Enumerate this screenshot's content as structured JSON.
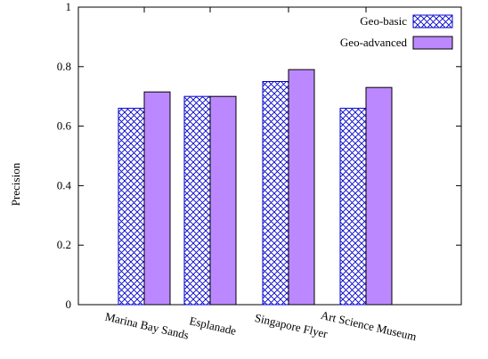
{
  "chart_data": {
    "type": "bar",
    "categories": [
      "Marina Bay Sands",
      "Esplanade",
      "Singapore Flyer",
      "Art Science Museum"
    ],
    "series": [
      {
        "name": "Geo-basic",
        "values": [
          0.66,
          0.7,
          0.75,
          0.66
        ],
        "pattern": "crosshatch",
        "color": "#0000cc"
      },
      {
        "name": "Geo-advanced",
        "values": [
          0.715,
          0.7,
          0.79,
          0.73
        ],
        "pattern": "solid",
        "color": "#bb88ff"
      }
    ],
    "ylabel": "Precision",
    "xlabel": "",
    "ylim": [
      0,
      1
    ],
    "yticks": [
      0,
      0.2,
      0.4,
      0.6,
      0.8,
      1
    ],
    "ytick_labels": [
      "0",
      "0.2",
      "0.4",
      "0.6",
      "0.8",
      "1"
    ],
    "legend_position": "top-right",
    "grid": false
  }
}
